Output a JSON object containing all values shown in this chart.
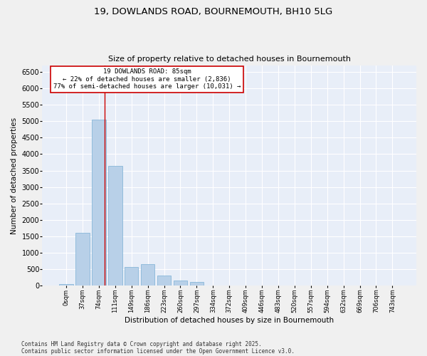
{
  "title_line1": "19, DOWLANDS ROAD, BOURNEMOUTH, BH10 5LG",
  "title_line2": "Size of property relative to detached houses in Bournemouth",
  "xlabel": "Distribution of detached houses by size in Bournemouth",
  "ylabel": "Number of detached properties",
  "bar_color": "#b8d0e8",
  "bar_edge_color": "#7aafd4",
  "bg_color": "#e8eef8",
  "grid_color": "#ffffff",
  "annotation_box_color": "#cc0000",
  "redline_color": "#cc0000",
  "categories": [
    "0sqm",
    "37sqm",
    "74sqm",
    "111sqm",
    "149sqm",
    "186sqm",
    "223sqm",
    "260sqm",
    "297sqm",
    "334sqm",
    "372sqm",
    "409sqm",
    "446sqm",
    "483sqm",
    "520sqm",
    "557sqm",
    "594sqm",
    "632sqm",
    "669sqm",
    "706sqm",
    "743sqm"
  ],
  "values": [
    50,
    1600,
    5050,
    3650,
    580,
    650,
    310,
    150,
    120,
    0,
    0,
    0,
    0,
    0,
    0,
    0,
    0,
    0,
    0,
    0,
    0
  ],
  "ylim": [
    0,
    6700
  ],
  "yticks": [
    0,
    500,
    1000,
    1500,
    2000,
    2500,
    3000,
    3500,
    4000,
    4500,
    5000,
    5500,
    6000,
    6500
  ],
  "annotation_text": "19 DOWLANDS ROAD: 85sqm\n← 22% of detached houses are smaller (2,836)\n77% of semi-detached houses are larger (10,031) →",
  "redline_x": 2.35,
  "footer_line1": "Contains HM Land Registry data © Crown copyright and database right 2025.",
  "footer_line2": "Contains public sector information licensed under the Open Government Licence v3.0.",
  "title_fontsize": 9.5,
  "subtitle_fontsize": 8,
  "annotation_fontsize": 6.5,
  "footer_fontsize": 5.5,
  "xlabel_fontsize": 7.5,
  "ylabel_fontsize": 7.5,
  "ytick_fontsize": 7,
  "xtick_fontsize": 6
}
